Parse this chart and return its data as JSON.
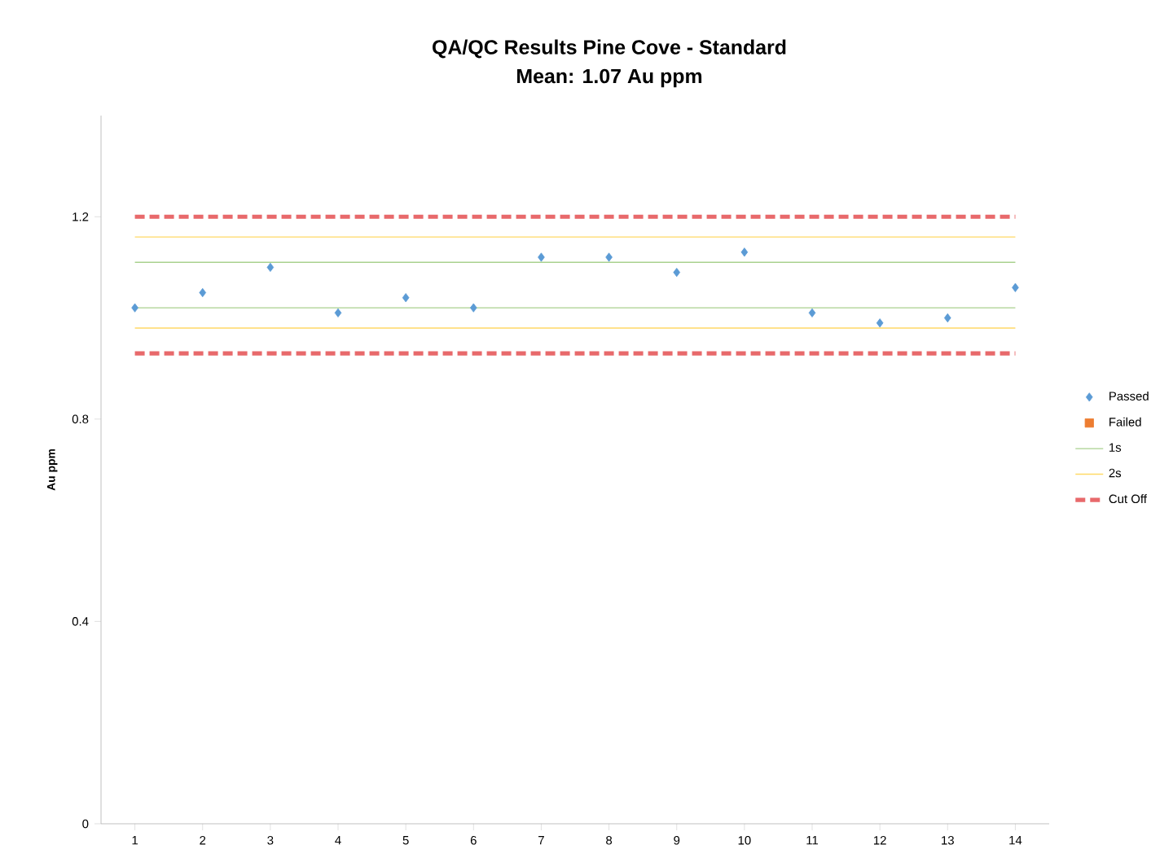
{
  "chart_data": {
    "type": "scatter",
    "title": "QA/QC Results Pine Cove - Standard",
    "subtitle": "Mean: 1.07 Au ppm",
    "ylabel": "Au ppm",
    "categories": [
      "1",
      "2",
      "3",
      "4",
      "5",
      "6",
      "7",
      "8",
      "9",
      "10",
      "11",
      "12",
      "13",
      "14"
    ],
    "series": [
      {
        "name": "Passed",
        "color": "#5b9bd5",
        "marker": "diamond",
        "values": [
          1.02,
          1.05,
          1.1,
          1.01,
          1.04,
          1.02,
          1.12,
          1.12,
          1.09,
          1.13,
          1.01,
          0.99,
          1.0,
          1.06
        ]
      },
      {
        "name": "Failed",
        "color": "#ed7d31",
        "marker": "square",
        "values": [
          null,
          null,
          null,
          null,
          null,
          null,
          null,
          null,
          null,
          null,
          null,
          null,
          null,
          null
        ]
      },
      {
        "name": "1s",
        "type": "line",
        "color": "#a9d18e",
        "line_style": "solid",
        "marker": "none",
        "values": [
          1.11,
          1.11,
          1.11,
          1.11,
          1.11,
          1.11,
          1.11,
          1.11,
          1.11,
          1.11,
          1.11,
          1.11,
          1.11,
          1.11
        ]
      },
      {
        "type": "line",
        "color": "#a9d18e",
        "line_style": "solid",
        "marker": "none",
        "values": [
          1.02,
          1.02,
          1.02,
          1.02,
          1.02,
          1.02,
          1.02,
          1.02,
          1.02,
          1.02,
          1.02,
          1.02,
          1.02,
          1.02
        ]
      },
      {
        "name": "2s",
        "type": "line",
        "color": "#ffd966",
        "line_style": "solid",
        "marker": "none",
        "values": [
          1.16,
          1.16,
          1.16,
          1.16,
          1.16,
          1.16,
          1.16,
          1.16,
          1.16,
          1.16,
          1.16,
          1.16,
          1.16,
          1.16
        ]
      },
      {
        "type": "line",
        "color": "#ffd966",
        "line_style": "solid",
        "marker": "none",
        "values": [
          0.98,
          0.98,
          0.98,
          0.98,
          0.98,
          0.98,
          0.98,
          0.98,
          0.98,
          0.98,
          0.98,
          0.98,
          0.98,
          0.98
        ]
      },
      {
        "name": "Cut Off",
        "type": "line",
        "color": "#e8696b",
        "line_style": "dashed",
        "marker": "none",
        "values": [
          1.2,
          1.2,
          1.2,
          1.2,
          1.2,
          1.2,
          1.2,
          1.2,
          1.2,
          1.2,
          1.2,
          1.2,
          1.2,
          1.2
        ]
      },
      {
        "type": "line",
        "color": "#e8696b",
        "line_style": "dashed",
        "marker": "none",
        "values": [
          0.93,
          0.93,
          0.93,
          0.93,
          0.93,
          0.93,
          0.93,
          0.93,
          0.93,
          0.93,
          0.93,
          0.93,
          0.93,
          0.93
        ]
      }
    ],
    "ylim": [
      0,
      1.4
    ],
    "yticks": [
      0,
      0.4,
      0.8,
      1.2
    ],
    "legend": "right",
    "grid": false
  }
}
